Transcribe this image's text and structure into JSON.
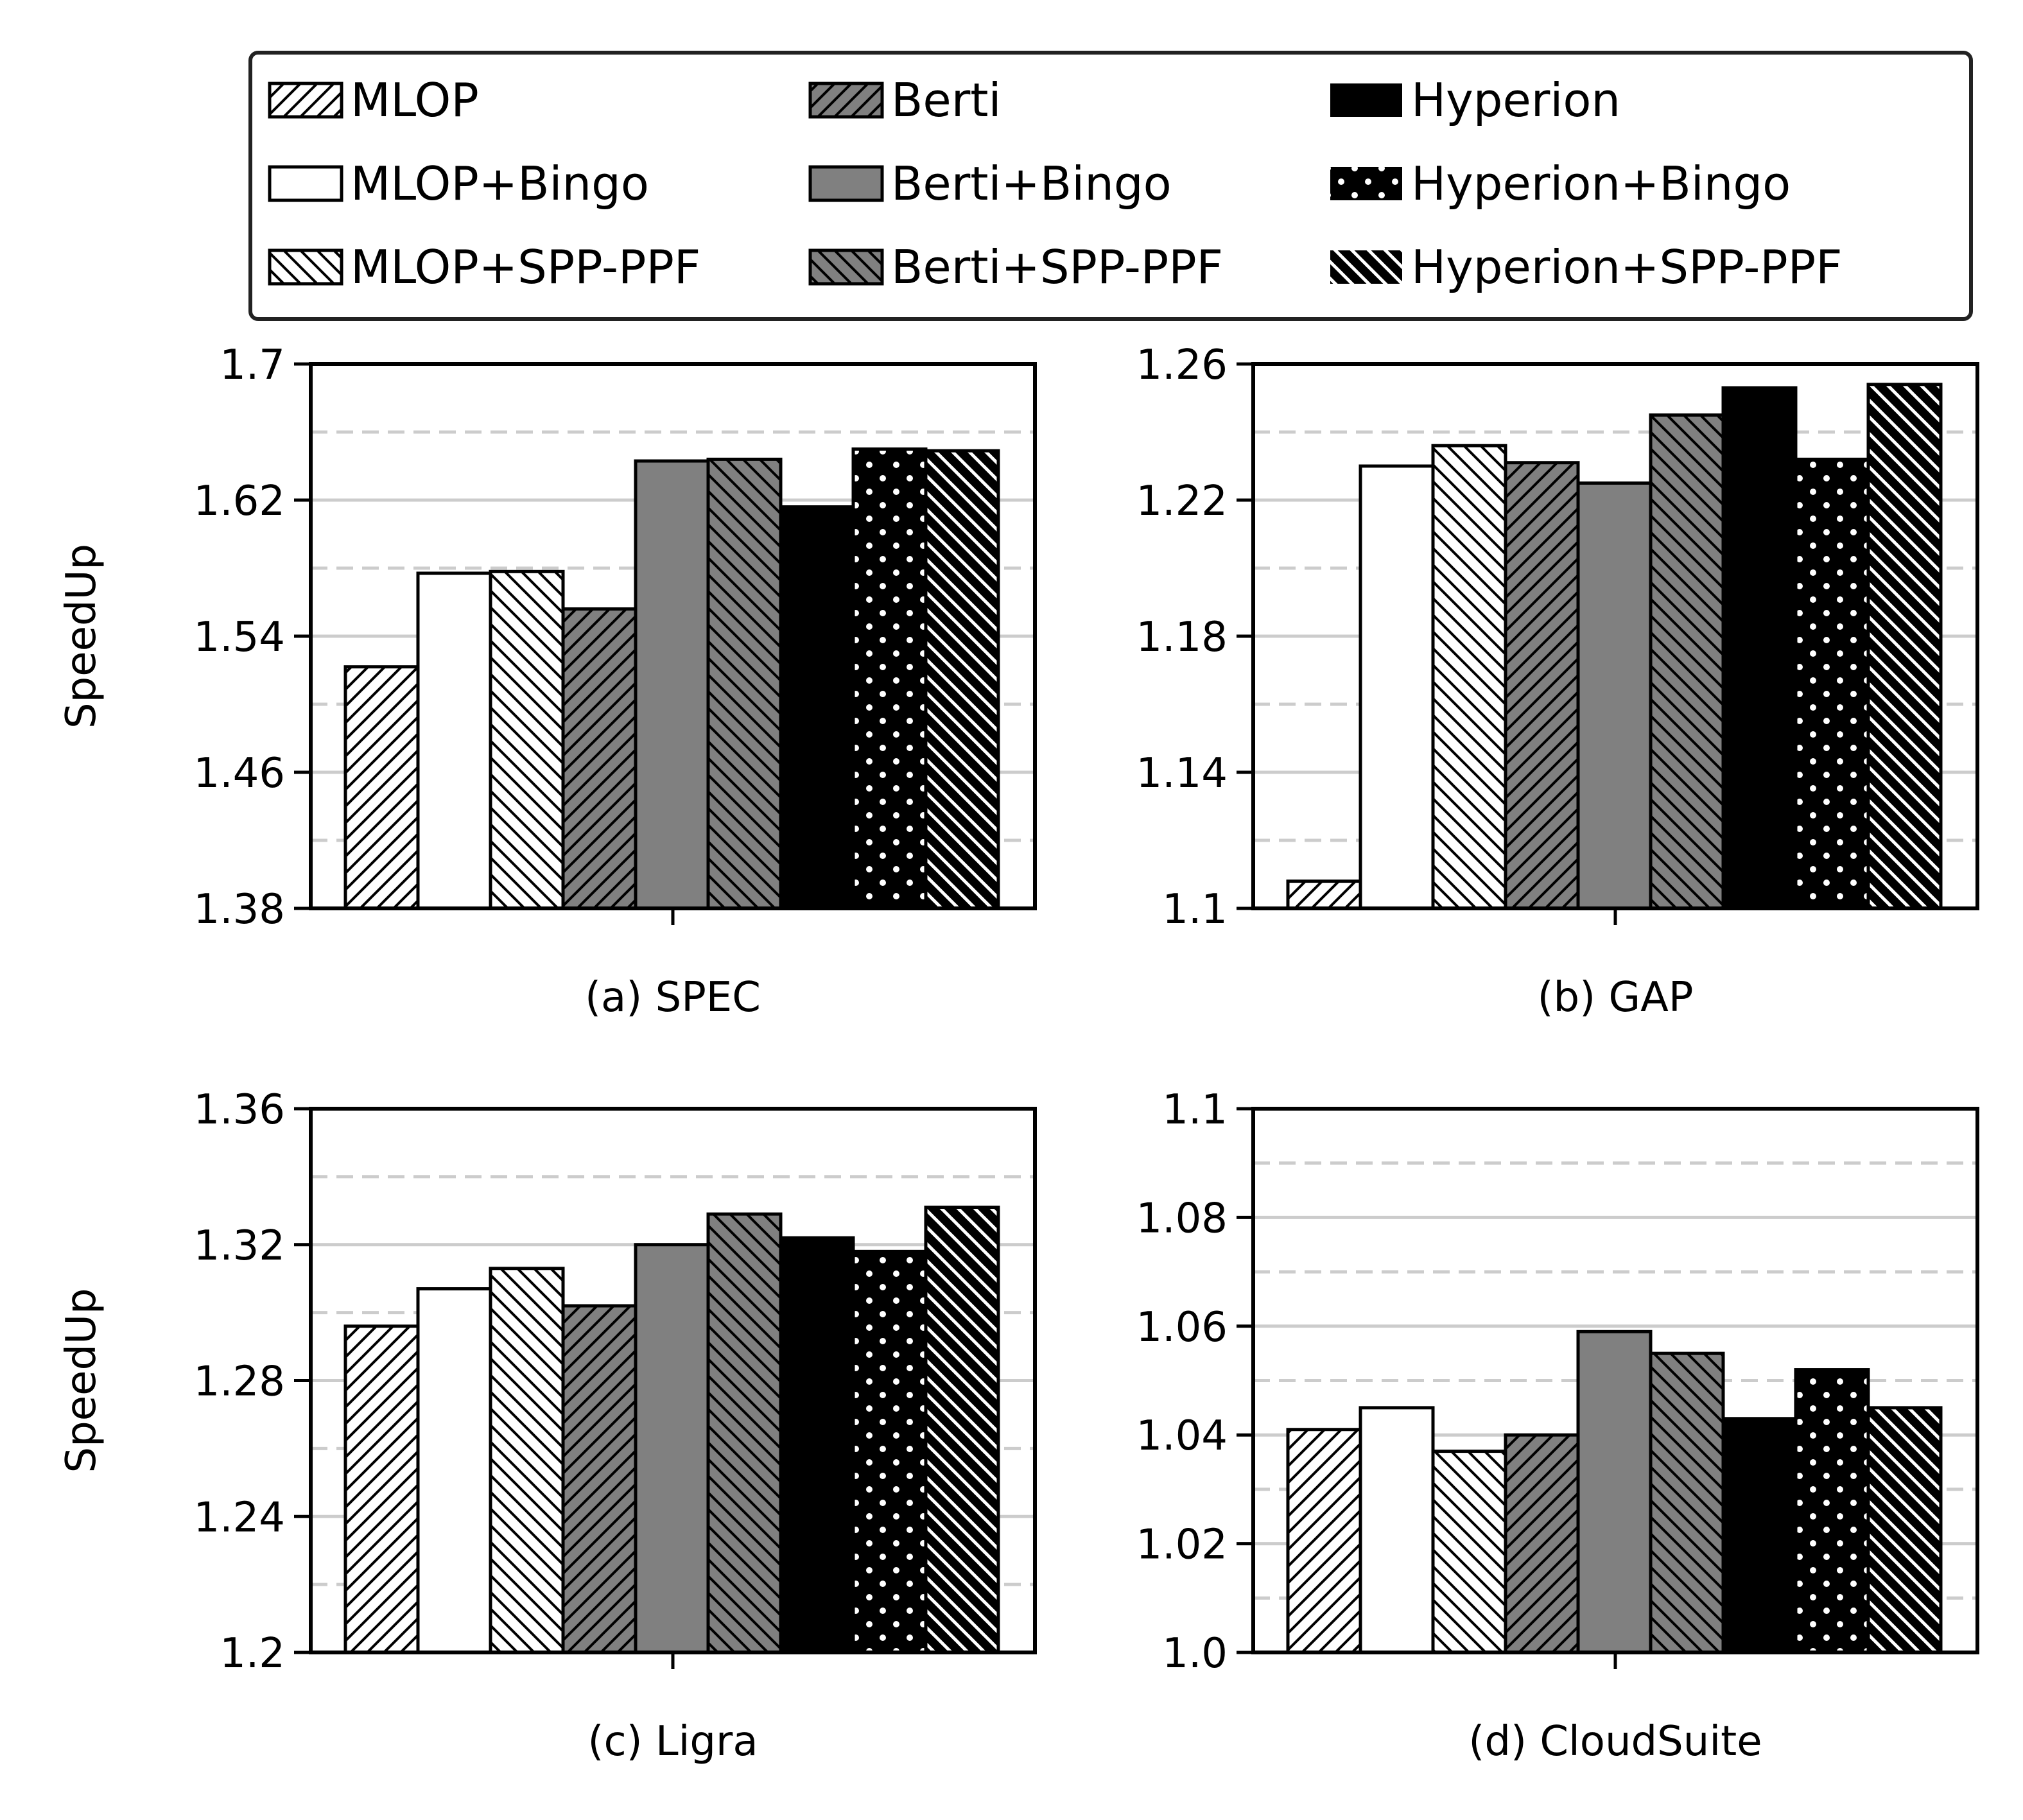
{
  "legend": {
    "items": [
      {
        "label": "MLOP",
        "style": "mlop"
      },
      {
        "label": "Berti",
        "style": "berti"
      },
      {
        "label": "Hyperion",
        "style": "hyp"
      },
      {
        "label": "MLOP+Bingo",
        "style": "mlop_bingo"
      },
      {
        "label": "Berti+Bingo",
        "style": "berti_bingo"
      },
      {
        "label": "Hyperion+Bingo",
        "style": "hyp_bingo"
      },
      {
        "label": "MLOP+SPP-PPF",
        "style": "mlop_spp"
      },
      {
        "label": "Berti+SPP-PPF",
        "style": "berti_spp"
      },
      {
        "label": "Hyperion+SPP-PPF",
        "style": "hyp_spp"
      }
    ]
  },
  "series_order": [
    "MLOP",
    "MLOP+Bingo",
    "MLOP+SPP-PPF",
    "Berti",
    "Berti+Bingo",
    "Berti+SPP-PPF",
    "Hyperion",
    "Hyperion+Bingo",
    "Hyperion+SPP-PPF"
  ],
  "chart_data": [
    {
      "type": "bar",
      "xlabel": "(a) SPEC",
      "ylabel": "SpeedUp",
      "ylim": [
        1.38,
        1.7
      ],
      "yticks": [
        "1.38",
        "1.46",
        "1.54",
        "1.62",
        "1.7"
      ],
      "minor_grid": [
        1.42,
        1.5,
        1.58,
        1.66
      ],
      "values": [
        1.522,
        1.577,
        1.578,
        1.556,
        1.643,
        1.644,
        1.616,
        1.65,
        1.649
      ]
    },
    {
      "type": "bar",
      "xlabel": "(b) GAP",
      "ylabel": "",
      "ylim": [
        1.1,
        1.26
      ],
      "yticks": [
        "1.1",
        "1.14",
        "1.18",
        "1.22",
        "1.26"
      ],
      "minor_grid": [
        1.12,
        1.16,
        1.2,
        1.24
      ],
      "values": [
        1.108,
        1.23,
        1.236,
        1.231,
        1.225,
        1.245,
        1.253,
        1.232,
        1.254
      ]
    },
    {
      "type": "bar",
      "xlabel": "(c) Ligra",
      "ylabel": "SpeedUp",
      "ylim": [
        1.2,
        1.36
      ],
      "yticks": [
        "1.2",
        "1.24",
        "1.28",
        "1.32",
        "1.36"
      ],
      "minor_grid": [
        1.22,
        1.26,
        1.3,
        1.34
      ],
      "values": [
        1.296,
        1.307,
        1.313,
        1.302,
        1.32,
        1.329,
        1.322,
        1.318,
        1.331
      ]
    },
    {
      "type": "bar",
      "xlabel": "(d) CloudSuite",
      "ylabel": "",
      "ylim": [
        1.0,
        1.1
      ],
      "yticks": [
        "1.0",
        "1.02",
        "1.04",
        "1.06",
        "1.08",
        "1.1"
      ],
      "minor_grid": [
        1.01,
        1.03,
        1.05,
        1.07,
        1.09
      ],
      "values": [
        1.041,
        1.045,
        1.037,
        1.04,
        1.059,
        1.055,
        1.043,
        1.052,
        1.045
      ]
    }
  ],
  "colors": {
    "white": "#ffffff",
    "gray": "#808080",
    "black": "#000000",
    "grid": "#cccccc"
  }
}
